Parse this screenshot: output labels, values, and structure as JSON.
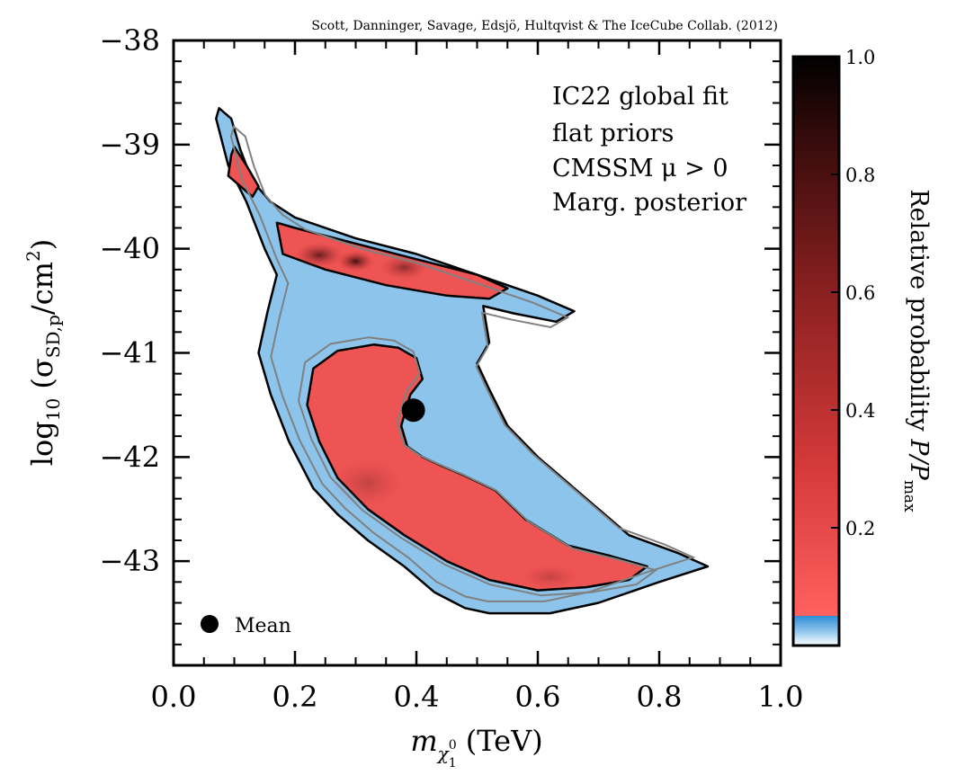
{
  "chart_data": {
    "type": "heatmap",
    "title": "",
    "credit": "Scott, Danninger, Savage, Edsjö, Hultqvist & The IceCube Collab. (2012)",
    "xlabel": {
      "main": "m",
      "sub": "χ",
      "subsub_top": "0",
      "subsub_bot": "1",
      "unit": " (TeV)"
    },
    "ylabel": {
      "prefix": "log",
      "prefix_sub": "10",
      "open": " (σ",
      "sub": "SD,p",
      "slash": "/cm",
      "sup": "2",
      "close": ")"
    },
    "xlim": [
      0.0,
      1.0
    ],
    "ylim": [
      -44.0,
      -38.0
    ],
    "x_ticks": [
      0.0,
      0.2,
      0.4,
      0.6,
      0.8,
      1.0
    ],
    "x_tick_labels": [
      "0.0",
      "0.2",
      "0.4",
      "0.6",
      "0.8",
      "1.0"
    ],
    "y_ticks": [
      -43,
      -42,
      -41,
      -40,
      -39,
      -38
    ],
    "y_tick_labels": [
      "−43",
      "−42",
      "−41",
      "−40",
      "−39",
      "−38"
    ],
    "annotation": [
      "IC22 global fit",
      "flat priors",
      "CMSSM μ > 0",
      "Marg. posterior"
    ],
    "legend": {
      "label": "Mean",
      "placement": "bottom-left"
    },
    "mean_point": {
      "x": 0.395,
      "y": -41.55
    },
    "colorbar": {
      "label_main": "Relative probability ",
      "label_P": "P/P",
      "label_sub": "max",
      "range": [
        0.0,
        1.0
      ],
      "ticks": [
        0.2,
        0.4,
        0.6,
        0.8,
        1.0
      ],
      "tick_labels": [
        "0.2",
        "0.4",
        "0.6",
        "0.8",
        "1.0"
      ],
      "threshold": 0.05,
      "colors": {
        "low": "#ffffff",
        "mid_blue": "#2f8fd6",
        "light_red": "#f75a5a",
        "red": "#d63a3a",
        "dark_red": "#5a1414",
        "high": "#000000"
      }
    },
    "colors": {
      "blue_region": "#8cc4ec",
      "red_region": "#ef5454",
      "outer_contour": "#000000",
      "gray_contour": "#808080"
    },
    "regions": {
      "outer_68": [
        [
          0.07,
          -38.75
        ],
        [
          0.075,
          -38.65
        ],
        [
          0.095,
          -38.75
        ],
        [
          0.11,
          -39.05
        ],
        [
          0.13,
          -39.35
        ],
        [
          0.16,
          -39.55
        ],
        [
          0.2,
          -39.7
        ],
        [
          0.3,
          -39.9
        ],
        [
          0.4,
          -40.05
        ],
        [
          0.5,
          -40.25
        ],
        [
          0.6,
          -40.45
        ],
        [
          0.66,
          -40.6
        ],
        [
          0.63,
          -40.7
        ],
        [
          0.56,
          -40.62
        ],
        [
          0.51,
          -40.55
        ],
        [
          0.52,
          -40.9
        ],
        [
          0.5,
          -41.1
        ],
        [
          0.52,
          -41.35
        ],
        [
          0.55,
          -41.7
        ],
        [
          0.6,
          -42.0
        ],
        [
          0.68,
          -42.4
        ],
        [
          0.75,
          -42.75
        ],
        [
          0.83,
          -42.92
        ],
        [
          0.88,
          -43.05
        ],
        [
          0.8,
          -43.2
        ],
        [
          0.75,
          -43.3
        ],
        [
          0.7,
          -43.4
        ],
        [
          0.62,
          -43.5
        ],
        [
          0.52,
          -43.5
        ],
        [
          0.48,
          -43.45
        ],
        [
          0.43,
          -43.3
        ],
        [
          0.38,
          -43.05
        ],
        [
          0.32,
          -42.8
        ],
        [
          0.27,
          -42.55
        ],
        [
          0.23,
          -42.3
        ],
        [
          0.19,
          -41.85
        ],
        [
          0.16,
          -41.4
        ],
        [
          0.14,
          -41.0
        ],
        [
          0.155,
          -40.6
        ],
        [
          0.17,
          -40.25
        ],
        [
          0.15,
          -40.0
        ],
        [
          0.12,
          -39.55
        ],
        [
          0.09,
          -39.2
        ]
      ],
      "inner_upper": [
        [
          0.095,
          -39.1
        ],
        [
          0.1,
          -39.02
        ],
        [
          0.12,
          -39.2
        ],
        [
          0.14,
          -39.4
        ],
        [
          0.13,
          -39.5
        ],
        [
          0.11,
          -39.4
        ],
        [
          0.09,
          -39.3
        ]
      ],
      "inner_band": [
        [
          0.17,
          -39.75
        ],
        [
          0.2,
          -39.8
        ],
        [
          0.3,
          -39.95
        ],
        [
          0.4,
          -40.1
        ],
        [
          0.5,
          -40.25
        ],
        [
          0.55,
          -40.38
        ],
        [
          0.52,
          -40.48
        ],
        [
          0.45,
          -40.45
        ],
        [
          0.35,
          -40.35
        ],
        [
          0.25,
          -40.2
        ],
        [
          0.18,
          -40.05
        ]
      ],
      "inner_lower": [
        [
          0.23,
          -41.15
        ],
        [
          0.27,
          -40.98
        ],
        [
          0.33,
          -40.92
        ],
        [
          0.37,
          -40.95
        ],
        [
          0.4,
          -41.05
        ],
        [
          0.41,
          -41.25
        ],
        [
          0.39,
          -41.4
        ],
        [
          0.375,
          -41.7
        ],
        [
          0.385,
          -41.9
        ],
        [
          0.41,
          -42.0
        ],
        [
          0.44,
          -42.08
        ],
        [
          0.48,
          -42.18
        ],
        [
          0.53,
          -42.32
        ],
        [
          0.58,
          -42.6
        ],
        [
          0.65,
          -42.85
        ],
        [
          0.72,
          -42.95
        ],
        [
          0.78,
          -43.05
        ],
        [
          0.75,
          -43.18
        ],
        [
          0.68,
          -43.25
        ],
        [
          0.6,
          -43.28
        ],
        [
          0.52,
          -43.18
        ],
        [
          0.45,
          -43.0
        ],
        [
          0.38,
          -42.75
        ],
        [
          0.32,
          -42.5
        ],
        [
          0.27,
          -42.2
        ],
        [
          0.24,
          -41.85
        ],
        [
          0.22,
          -41.5
        ]
      ]
    },
    "density_blobs": [
      [
        0.3,
        -40.12,
        0.03,
        0.1,
        0.95
      ],
      [
        0.24,
        -40.06,
        0.04,
        0.12,
        0.75
      ],
      [
        0.38,
        -40.18,
        0.04,
        0.12,
        0.55
      ],
      [
        0.32,
        -42.25,
        0.06,
        0.25,
        0.25
      ],
      [
        0.62,
        -43.15,
        0.05,
        0.12,
        0.25
      ]
    ]
  }
}
